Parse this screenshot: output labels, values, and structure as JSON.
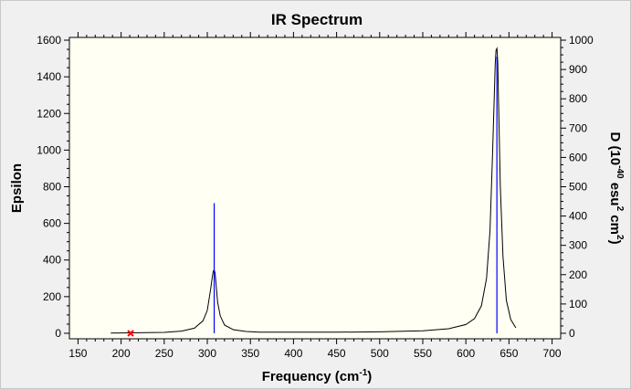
{
  "chart_data": {
    "type": "line",
    "title": "IR Spectrum",
    "xlabel": "Frequency (cm",
    "xlabel_sup": "-1",
    "xlabel_end": ")",
    "ylabel": "Epsilon",
    "y2label_parts": [
      "D (10",
      "-40",
      " esu",
      "2",
      " cm",
      "2",
      ")"
    ],
    "xlim": [
      140,
      710
    ],
    "ylim": [
      -30,
      1615
    ],
    "y2lim": [
      -18.75,
      1009.4
    ],
    "x_ticks": [
      "150",
      "200",
      "250",
      "300",
      "350",
      "400",
      "450",
      "500",
      "550",
      "600",
      "650",
      "700"
    ],
    "y_ticks": [
      "0",
      "200",
      "400",
      "600",
      "800",
      "1000",
      "1200",
      "1400",
      "1600"
    ],
    "y2_ticks": [
      "0",
      "100",
      "200",
      "300",
      "400",
      "500",
      "600",
      "700",
      "800",
      "900",
      "1000"
    ],
    "grid": false,
    "series": [
      {
        "kind": "spectrum",
        "axis": "left",
        "color": "#000000",
        "x": [
          188,
          200,
          250,
          270,
          285,
          295,
          300,
          304,
          306,
          307,
          308,
          309,
          310,
          312,
          315,
          320,
          330,
          345,
          360,
          400,
          450,
          500,
          550,
          580,
          600,
          610,
          618,
          624,
          628,
          631,
          633,
          634,
          635,
          636,
          637,
          638,
          640,
          643,
          647,
          652,
          658
        ],
        "y": [
          1,
          2,
          5,
          12,
          28,
          68,
          125,
          245,
          315,
          340,
          345,
          330,
          275,
          170,
          95,
          45,
          20,
          10,
          6,
          6,
          6,
          8,
          14,
          25,
          48,
          80,
          150,
          300,
          560,
          980,
          1300,
          1470,
          1545,
          1555,
          1480,
          1250,
          800,
          420,
          180,
          75,
          30
        ]
      },
      {
        "kind": "sticks",
        "axis": "right",
        "color": "#0000ff",
        "x": [
          308,
          636
        ],
        "y": [
          444,
          944
        ]
      }
    ],
    "markers": [
      {
        "x": 211,
        "y": 0,
        "axis": "left",
        "color": "#ff0000",
        "symbol": "x"
      }
    ]
  }
}
